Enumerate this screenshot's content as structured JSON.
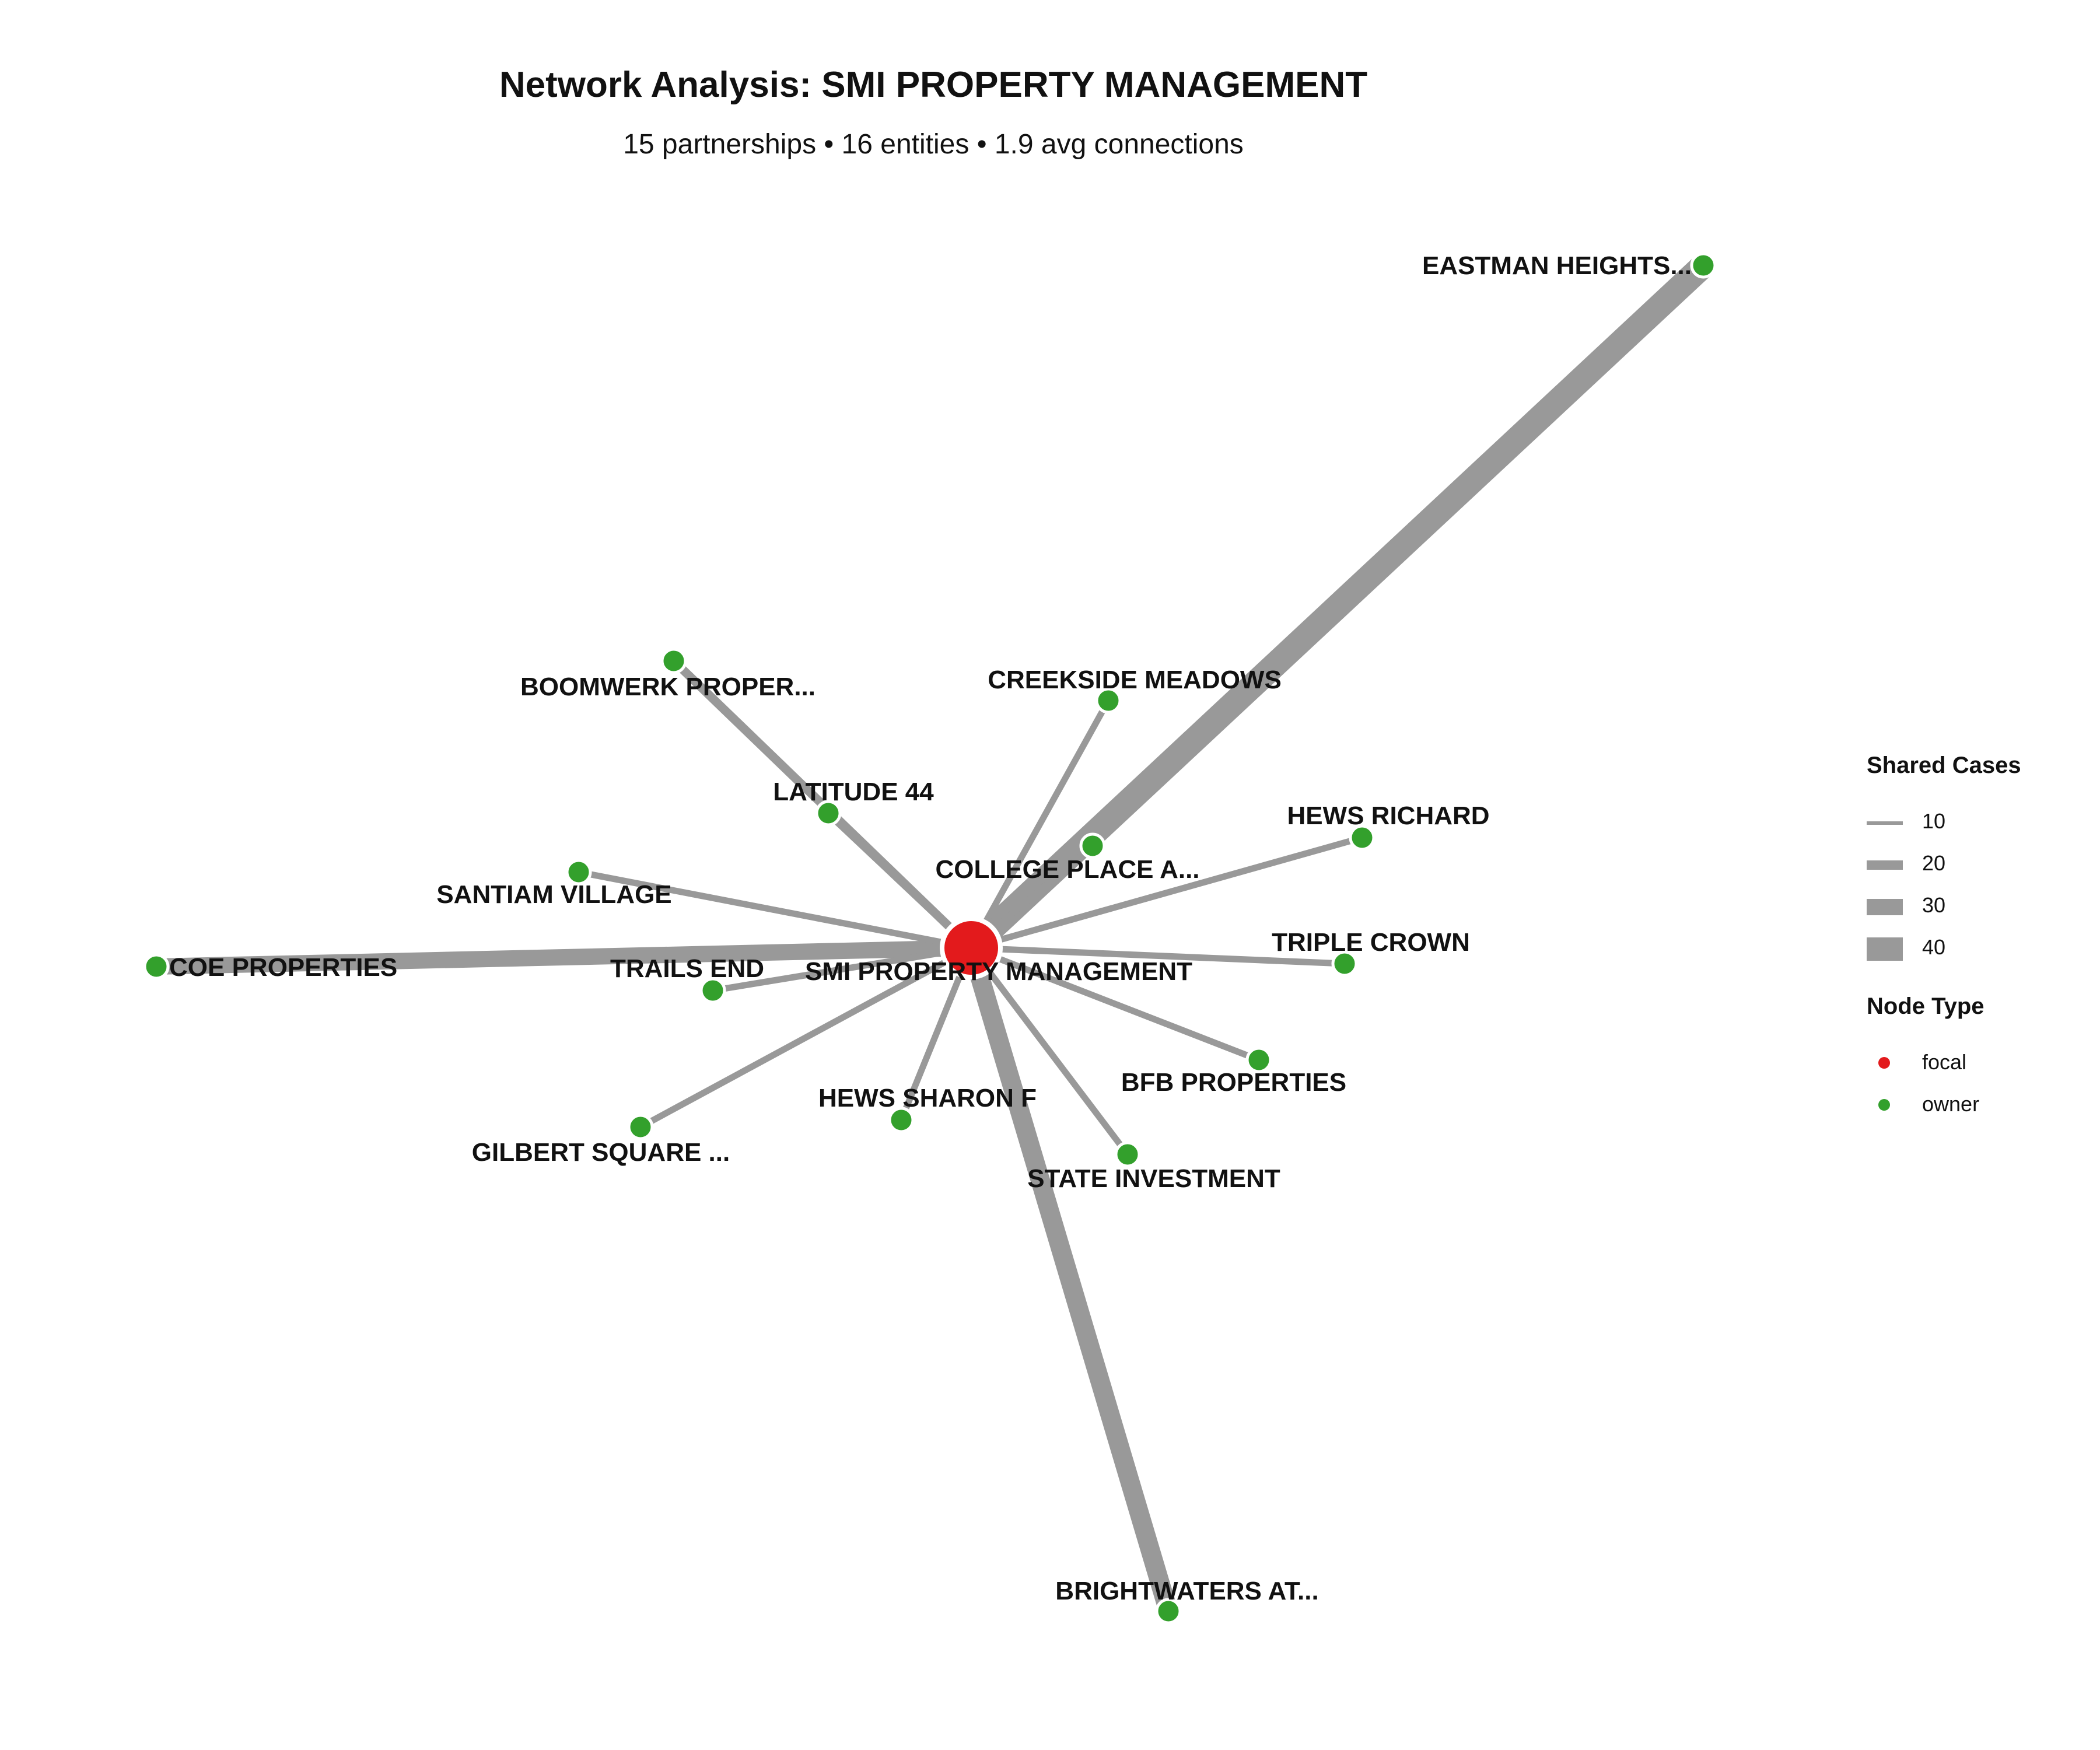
{
  "title": "Network Analysis: SMI PROPERTY MANAGEMENT",
  "subtitle": "15 partnerships • 16 entities • 1.9 avg connections",
  "colors": {
    "focal": "#e31a1c",
    "owner": "#33a02c",
    "edge": "#999999"
  },
  "legend": {
    "edge_title": "Shared Cases",
    "edge_items": [
      {
        "label": "10",
        "value": 10
      },
      {
        "label": "20",
        "value": 20
      },
      {
        "label": "30",
        "value": 30
      },
      {
        "label": "40",
        "value": 40
      }
    ],
    "node_title": "Node Type",
    "node_items": [
      {
        "label": "focal",
        "color": "#e31a1c"
      },
      {
        "label": "owner",
        "color": "#33a02c"
      }
    ]
  },
  "focal": {
    "id": "smi",
    "label": "SMI PROPERTY MANAGEMENT"
  },
  "owners": [
    {
      "id": "eastman",
      "label": "EASTMAN HEIGHTS...",
      "shared_cases": 40
    },
    {
      "id": "brightwaters",
      "label": "BRIGHTWATERS AT...",
      "shared_cases": 30
    },
    {
      "id": "coe",
      "label": "COE PROPERTIES",
      "shared_cases": 25
    },
    {
      "id": "boomwerk",
      "label": "BOOMWERK PROPER...",
      "shared_cases": 12
    },
    {
      "id": "latitude",
      "label": "LATITUDE 44",
      "shared_cases": 10
    },
    {
      "id": "creekside",
      "label": "CREEKSIDE MEADOWS",
      "shared_cases": 8
    },
    {
      "id": "college",
      "label": "COLLEGE PLACE A...",
      "shared_cases": 8
    },
    {
      "id": "hews_richard",
      "label": "HEWS RICHARD",
      "shared_cases": 8
    },
    {
      "id": "santiam",
      "label": "SANTIAM VILLAGE",
      "shared_cases": 8
    },
    {
      "id": "triple",
      "label": "TRIPLE CROWN",
      "shared_cases": 8
    },
    {
      "id": "trails",
      "label": "TRAILS END",
      "shared_cases": 8
    },
    {
      "id": "bfb",
      "label": "BFB PROPERTIES",
      "shared_cases": 8
    },
    {
      "id": "gilbert",
      "label": "GILBERT SQUARE ...",
      "shared_cases": 8
    },
    {
      "id": "hews_sharon",
      "label": "HEWS SHARON F",
      "shared_cases": 8
    },
    {
      "id": "state",
      "label": "STATE INVESTMENT",
      "shared_cases": 8
    }
  ]
}
